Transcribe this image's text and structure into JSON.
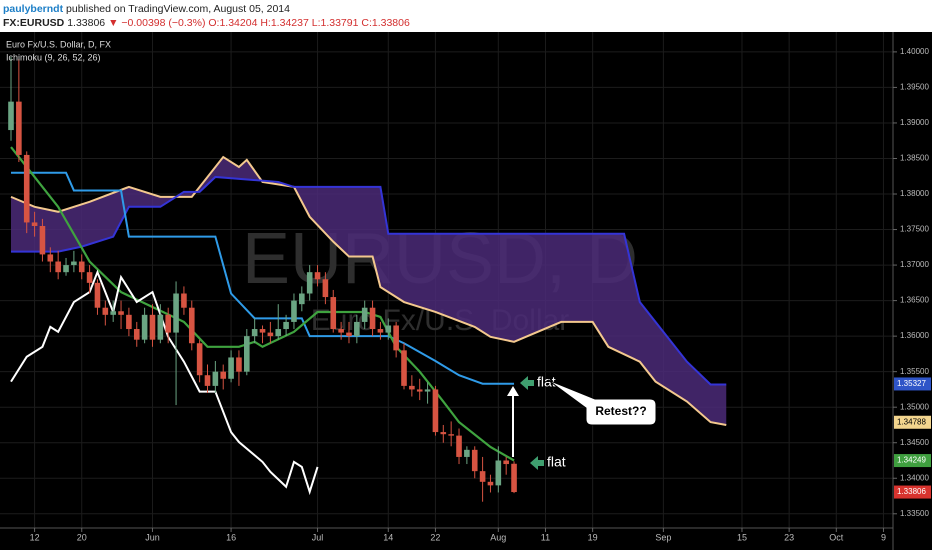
{
  "header": {
    "user": "paulyberndt",
    "published": "published on TradingView.com, August 05, 2014",
    "symbol": "FX:EURUSD",
    "price": "1.33806",
    "change": "▼ −0.00398 (−0.3%)",
    "open": "O:1.34204",
    "high": "H:1.34237",
    "low": "L:1.33791",
    "close": "C:1.33806"
  },
  "chart_data": {
    "type": "candlestick",
    "title": "Euro Fx/U.S. Dollar, D, FX",
    "indicator": "Ichimoku (9, 26, 52, 26)",
    "watermark": "EURUSD, D",
    "watermark_subtitle": "Euro Fx/U.S. Dollar",
    "x": [
      "2014-05-07",
      "2014-05-08",
      "2014-05-09",
      "2014-05-12",
      "2014-05-13",
      "2014-05-14",
      "2014-05-15",
      "2014-05-16",
      "2014-05-19",
      "2014-05-20",
      "2014-05-21",
      "2014-05-22",
      "2014-05-23",
      "2014-05-26",
      "2014-05-27",
      "2014-05-28",
      "2014-05-29",
      "2014-05-30",
      "2014-06-02",
      "2014-06-03",
      "2014-06-04",
      "2014-06-05",
      "2014-06-06",
      "2014-06-09",
      "2014-06-10",
      "2014-06-11",
      "2014-06-12",
      "2014-06-13",
      "2014-06-16",
      "2014-06-17",
      "2014-06-18",
      "2014-06-19",
      "2014-06-20",
      "2014-06-23",
      "2014-06-24",
      "2014-06-25",
      "2014-06-26",
      "2014-06-27",
      "2014-06-30",
      "2014-07-01",
      "2014-07-02",
      "2014-07-03",
      "2014-07-04",
      "2014-07-07",
      "2014-07-08",
      "2014-07-09",
      "2014-07-10",
      "2014-07-11",
      "2014-07-14",
      "2014-07-15",
      "2014-07-16",
      "2014-07-17",
      "2014-07-18",
      "2014-07-21",
      "2014-07-22",
      "2014-07-23",
      "2014-07-24",
      "2014-07-25",
      "2014-07-28",
      "2014-07-29",
      "2014-07-30",
      "2014-07-31",
      "2014-08-01",
      "2014-08-04",
      "2014-08-05"
    ],
    "open": [
      1.389,
      1.393,
      1.3855,
      1.376,
      1.3755,
      1.3715,
      1.3705,
      1.369,
      1.37,
      1.3705,
      1.369,
      1.3675,
      1.364,
      1.363,
      1.3635,
      1.363,
      1.361,
      1.3595,
      1.363,
      1.3595,
      1.363,
      1.3605,
      1.366,
      1.364,
      1.359,
      1.3545,
      1.353,
      1.355,
      1.354,
      1.357,
      1.355,
      1.36,
      1.361,
      1.3605,
      1.36,
      1.361,
      1.362,
      1.3645,
      1.366,
      1.369,
      1.368,
      1.3655,
      1.361,
      1.3605,
      1.36,
      1.362,
      1.364,
      1.361,
      1.3605,
      1.3615,
      1.358,
      1.353,
      1.3525,
      1.3522,
      1.3525,
      1.3465,
      1.3462,
      1.346,
      1.343,
      1.344,
      1.341,
      1.3395,
      1.339,
      1.3425,
      1.34204
    ],
    "high": [
      1.3993,
      1.399,
      1.386,
      1.3775,
      1.3765,
      1.3725,
      1.372,
      1.371,
      1.372,
      1.3715,
      1.37,
      1.368,
      1.365,
      1.365,
      1.365,
      1.364,
      1.362,
      1.364,
      1.3645,
      1.3645,
      1.364,
      1.3677,
      1.367,
      1.365,
      1.3595,
      1.356,
      1.3565,
      1.356,
      1.358,
      1.358,
      1.361,
      1.3625,
      1.3615,
      1.362,
      1.3645,
      1.363,
      1.366,
      1.367,
      1.37,
      1.37,
      1.369,
      1.3665,
      1.362,
      1.362,
      1.363,
      1.365,
      1.365,
      1.362,
      1.3625,
      1.362,
      1.359,
      1.3545,
      1.354,
      1.3535,
      1.353,
      1.3475,
      1.348,
      1.347,
      1.3445,
      1.3445,
      1.343,
      1.3405,
      1.3445,
      1.343,
      1.34237
    ],
    "low": [
      1.3875,
      1.3845,
      1.3745,
      1.374,
      1.3705,
      1.369,
      1.368,
      1.3685,
      1.369,
      1.368,
      1.366,
      1.363,
      1.3615,
      1.362,
      1.361,
      1.36,
      1.3585,
      1.359,
      1.3585,
      1.359,
      1.359,
      1.3503,
      1.363,
      1.358,
      1.3535,
      1.352,
      1.352,
      1.3525,
      1.3535,
      1.353,
      1.3545,
      1.359,
      1.359,
      1.359,
      1.3595,
      1.36,
      1.361,
      1.3635,
      1.365,
      1.367,
      1.3645,
      1.3605,
      1.3595,
      1.359,
      1.359,
      1.361,
      1.36,
      1.3595,
      1.3595,
      1.357,
      1.3525,
      1.3515,
      1.351,
      1.3505,
      1.346,
      1.345,
      1.3445,
      1.342,
      1.342,
      1.34,
      1.3367,
      1.338,
      1.338,
      1.3405,
      1.33791
    ],
    "close": [
      1.393,
      1.3855,
      1.376,
      1.3755,
      1.3715,
      1.3705,
      1.369,
      1.37,
      1.3705,
      1.369,
      1.3675,
      1.364,
      1.363,
      1.3635,
      1.363,
      1.361,
      1.3595,
      1.363,
      1.3595,
      1.363,
      1.3605,
      1.366,
      1.364,
      1.359,
      1.3545,
      1.353,
      1.355,
      1.354,
      1.357,
      1.355,
      1.36,
      1.361,
      1.3605,
      1.36,
      1.361,
      1.362,
      1.365,
      1.366,
      1.369,
      1.368,
      1.3655,
      1.361,
      1.3605,
      1.36,
      1.362,
      1.364,
      1.361,
      1.3605,
      1.3615,
      1.358,
      1.353,
      1.3525,
      1.3522,
      1.3525,
      1.3465,
      1.3462,
      1.346,
      1.343,
      1.344,
      1.341,
      1.3395,
      1.339,
      1.3425,
      1.342,
      1.33806
    ],
    "up_color": "#6ba583",
    "down_color": "#d75442",
    "ichimoku": {
      "span_a": {
        "color": "#f3c88e",
        "x": [
          "2014-05-07",
          "2014-05-12",
          "2014-05-15",
          "2014-05-21",
          "2014-05-28",
          "2014-06-03",
          "2014-06-09",
          "2014-06-11",
          "2014-06-13",
          "2014-06-17",
          "2014-06-18",
          "2014-06-20",
          "2014-06-26",
          "2014-06-30",
          "2014-07-03",
          "2014-07-07",
          "2014-07-10",
          "2014-07-11",
          "2014-07-16",
          "2014-07-22",
          "2014-07-29",
          "2014-07-31",
          "2014-08-05",
          "2014-08-13",
          "2014-08-19",
          "2014-08-21",
          "2014-08-27",
          "2014-08-29",
          "2014-09-04",
          "2014-09-09",
          "2014-09-11"
        ],
        "values": [
          1.3796,
          1.3782,
          1.3775,
          1.3789,
          1.381,
          1.3796,
          1.3796,
          1.3824,
          1.3852,
          1.3838,
          1.3848,
          1.3817,
          1.381,
          1.3768,
          1.3733,
          1.3712,
          1.3712,
          1.3669,
          1.3648,
          1.3634,
          1.3613,
          1.3599,
          1.3592,
          1.362,
          1.362,
          1.3585,
          1.3564,
          1.3536,
          1.3508,
          1.3479,
          1.3475
        ]
      },
      "span_b": {
        "color": "#3434d6",
        "x": [
          "2014-05-07",
          "2014-05-12",
          "2014-05-15",
          "2014-05-20",
          "2014-05-26",
          "2014-05-28",
          "2014-06-03",
          "2014-06-06",
          "2014-06-10",
          "2014-06-12",
          "2014-06-24",
          "2014-06-26",
          "2014-07-11",
          "2014-07-14",
          "2014-08-25",
          "2014-08-27",
          "2014-09-01",
          "2014-09-04",
          "2014-09-09",
          "2014-09-11"
        ],
        "values": [
          1.3719,
          1.3719,
          1.3719,
          1.3726,
          1.374,
          1.3782,
          1.3782,
          1.3803,
          1.3803,
          1.3824,
          1.3817,
          1.381,
          1.381,
          1.3744,
          1.3744,
          1.3648,
          1.3606,
          1.3564,
          1.3532,
          1.3532
        ]
      },
      "cloud_color": "#4b2a78",
      "kijun": {
        "color": "#2f9be8",
        "x": [
          "2014-05-07",
          "2014-05-16",
          "2014-05-19",
          "2014-05-27",
          "2014-05-28",
          "2014-06-12",
          "2014-06-13",
          "2014-06-16",
          "2014-06-19",
          "2014-06-27",
          "2014-06-30",
          "2014-07-14",
          "2014-07-16",
          "2014-07-22",
          "2014-07-25",
          "2014-07-30",
          "2014-08-05"
        ],
        "values": [
          1.383,
          1.383,
          1.3805,
          1.3805,
          1.374,
          1.374,
          1.37,
          1.366,
          1.3625,
          1.3625,
          1.36,
          1.36,
          1.359,
          1.3565,
          1.3545,
          1.3533,
          1.3533
        ]
      },
      "tenkan": {
        "color": "#3fa33f",
        "x": [
          "2014-05-07",
          "2014-05-15",
          "2014-05-21",
          "2014-05-27",
          "2014-06-02",
          "2014-06-06",
          "2014-06-11",
          "2014-06-17",
          "2014-06-19",
          "2014-06-20",
          "2014-06-26",
          "2014-07-01",
          "2014-07-09",
          "2014-07-11",
          "2014-07-15",
          "2014-07-18",
          "2014-07-23",
          "2014-07-25",
          "2014-07-31",
          "2014-08-05"
        ],
        "values": [
          1.3866,
          1.3782,
          1.3705,
          1.3662,
          1.3641,
          1.362,
          1.3585,
          1.3585,
          1.3592,
          1.3585,
          1.3606,
          1.3634,
          1.3634,
          1.3627,
          1.3585,
          1.355,
          1.3508,
          1.3479,
          1.3444,
          1.3425
        ]
      },
      "chikou": {
        "color": "#ffffff",
        "x": [
          "2014-05-07",
          "2014-05-09",
          "2014-05-13",
          "2014-05-14",
          "2014-05-15",
          "2014-05-19",
          "2014-05-21",
          "2014-05-22",
          "2014-05-26",
          "2014-05-27",
          "2014-05-29",
          "2014-06-02",
          "2014-06-04",
          "2014-06-06",
          "2014-06-10",
          "2014-06-12",
          "2014-06-16",
          "2014-06-17",
          "2014-06-20",
          "2014-06-23",
          "2014-06-25",
          "2014-06-26",
          "2014-06-27",
          "2014-06-30",
          "2014-07-01"
        ],
        "values": [
          1.3536,
          1.3571,
          1.3585,
          1.3613,
          1.3606,
          1.3648,
          1.3662,
          1.369,
          1.3634,
          1.3683,
          1.3648,
          1.3662,
          1.3599,
          1.3564,
          1.3522,
          1.3522,
          1.3465,
          1.3451,
          1.3423,
          1.3409,
          1.3388,
          1.3423,
          1.3416,
          1.3381,
          1.3416
        ]
      }
    },
    "ylim": [
      1.333,
      1.4028
    ],
    "yticks": [
      {
        "value": 1.4,
        "label": "1.40000"
      },
      {
        "value": 1.395,
        "label": "1.39500"
      },
      {
        "value": 1.39,
        "label": "1.39000"
      },
      {
        "value": 1.385,
        "label": "1.38500"
      },
      {
        "value": 1.38,
        "label": "1.38000"
      },
      {
        "value": 1.375,
        "label": "1.37500"
      },
      {
        "value": 1.37,
        "label": "1.37000"
      },
      {
        "value": 1.365,
        "label": "1.36500"
      },
      {
        "value": 1.36,
        "label": "1.36000"
      },
      {
        "value": 1.355,
        "label": "1.35500"
      },
      {
        "value": 1.35,
        "label": "1.35000"
      },
      {
        "value": 1.345,
        "label": "1.34500"
      },
      {
        "value": 1.34,
        "label": "1.34000"
      },
      {
        "value": 1.335,
        "label": "1.33500"
      }
    ],
    "xticks": [
      {
        "value": "2014-05-12",
        "label": "12"
      },
      {
        "value": "2014-05-20",
        "label": "20"
      },
      {
        "value": "2014-06-02",
        "label": "Jun"
      },
      {
        "value": "2014-06-16",
        "label": "16"
      },
      {
        "value": "2014-07-01",
        "label": "Jul"
      },
      {
        "value": "2014-07-14",
        "label": "14"
      },
      {
        "value": "2014-07-22",
        "label": "22"
      },
      {
        "value": "2014-08-01",
        "label": "Aug"
      },
      {
        "value": "2014-08-11",
        "label": "11"
      },
      {
        "value": "2014-08-19",
        "label": "19"
      },
      {
        "value": "2014-09-01",
        "label": "Sep"
      },
      {
        "value": "2014-09-15",
        "label": "15"
      },
      {
        "value": "2014-09-23",
        "label": "23"
      },
      {
        "value": "2014-10-01",
        "label": "Oct"
      },
      {
        "value": "2014-10-09",
        "label": "9"
      }
    ],
    "price_labels": [
      {
        "value": 1.35327,
        "color": "#2f55c8"
      },
      {
        "value": 1.34788,
        "color": "#f3d58e"
      },
      {
        "value": 1.34249,
        "color": "#3f9f3f"
      },
      {
        "value": 1.33806,
        "color": "#d8332e"
      }
    ],
    "grid": true,
    "annotations": [
      "flat",
      "flat",
      "Retest??"
    ]
  }
}
